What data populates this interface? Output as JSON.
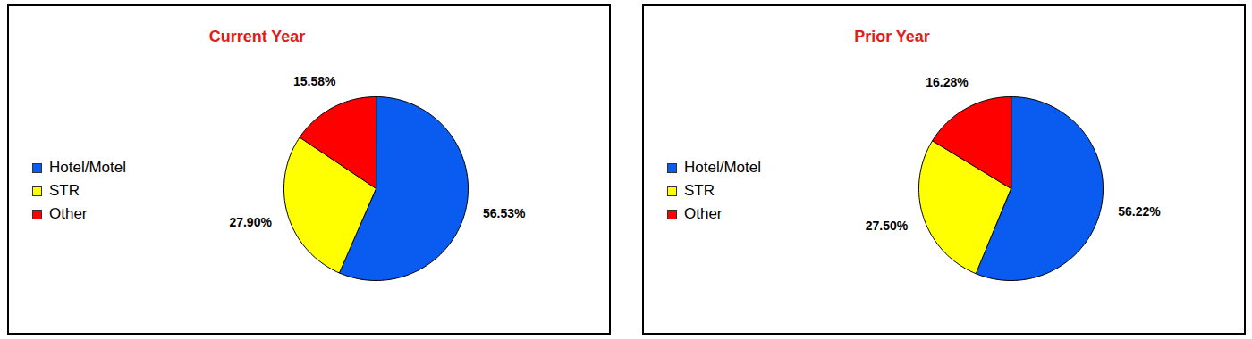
{
  "chart_data": [
    {
      "type": "pie",
      "title": "Current Year",
      "categories": [
        "Hotel/Motel",
        "STR",
        "Other"
      ],
      "values": [
        56.53,
        27.9,
        15.58
      ],
      "value_labels": [
        "56.53%",
        "27.90%",
        "15.58%"
      ],
      "colors": [
        "#0a5cf0",
        "#ffff00",
        "#ff0000"
      ],
      "data_labels": true,
      "legend": "left"
    },
    {
      "type": "pie",
      "title": "Prior Year",
      "categories": [
        "Hotel/Motel",
        "STR",
        "Other"
      ],
      "values": [
        56.22,
        27.5,
        16.28
      ],
      "value_labels": [
        "56.22%",
        "27.50%",
        "16.28%"
      ],
      "colors": [
        "#0a5cf0",
        "#ffff00",
        "#ff0000"
      ],
      "data_labels": true,
      "legend": "left"
    }
  ]
}
